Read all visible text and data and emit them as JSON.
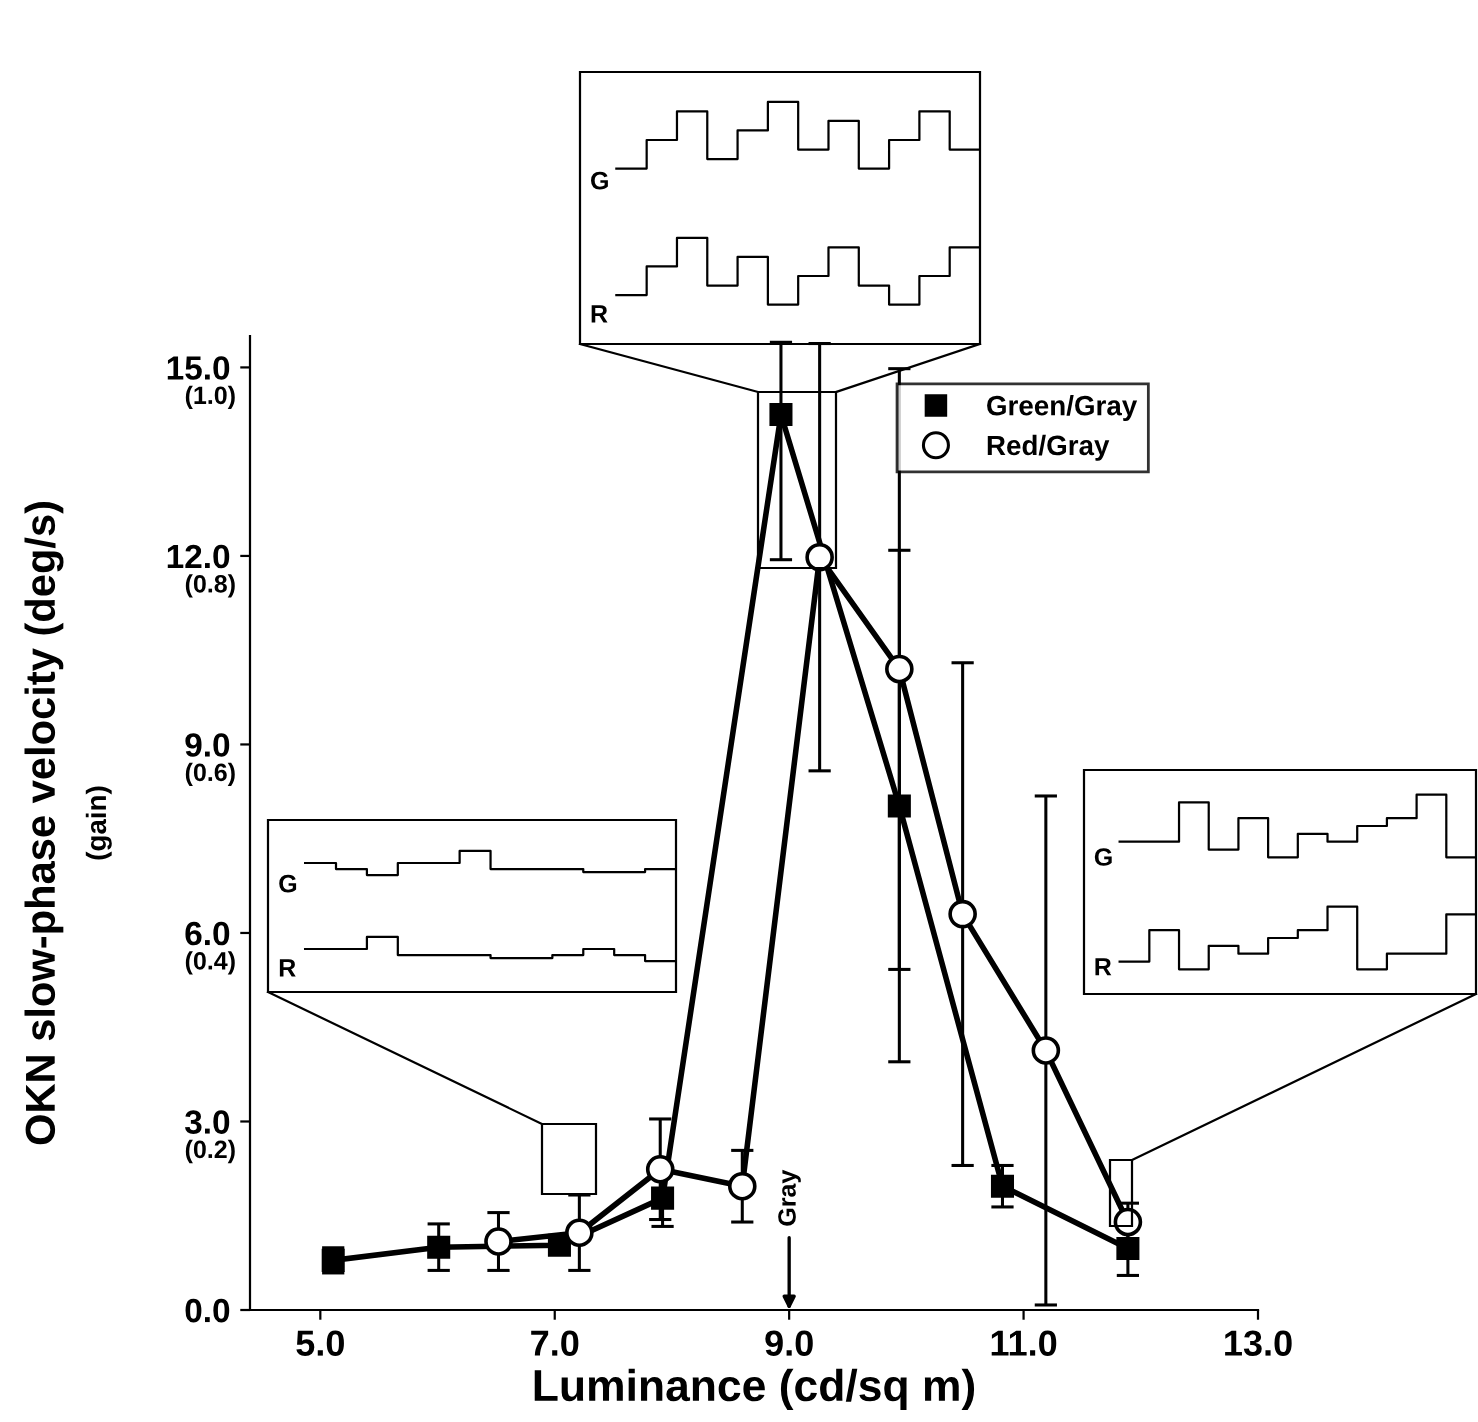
{
  "chart_data": {
    "type": "line",
    "xlabel": "Luminance (cd/sq m)",
    "ylabel": "OKN slow-phase velocity (deg/s)",
    "xlim": [
      4.4,
      13.0
    ],
    "xticks": [
      {
        "value": 5,
        "label": "5.0"
      },
      {
        "value": 7,
        "label": "7.0"
      },
      {
        "value": 9,
        "label": "9.0"
      },
      {
        "value": 11,
        "label": "11.0"
      },
      {
        "value": 13,
        "label": "13.0"
      }
    ],
    "ylim": [
      0,
      15.5
    ],
    "yticks": [
      {
        "value": 0,
        "label": "0.0"
      },
      {
        "value": 3,
        "label": "3.0"
      },
      {
        "value": 6,
        "label": "6.0"
      },
      {
        "value": 9,
        "label": "9.0"
      },
      {
        "value": 12,
        "label": "12.0"
      },
      {
        "value": 15,
        "label": "15.0"
      }
    ],
    "grid": false,
    "legend": "top right",
    "line_style": "solid",
    "series": [
      {
        "name": "Green/Gray",
        "color": "#000000",
        "marker": "square",
        "x": [
          5.11,
          6.01,
          7.04,
          7.92,
          8.93,
          9.94,
          10.82,
          11.89
        ],
        "values": [
          0.79,
          1.0,
          1.03,
          1.78,
          14.25,
          8.02,
          1.97,
          0.98
        ],
        "errors": [
          0.2,
          0.37,
          null,
          0.45,
          [
            11.94,
            15.4
          ],
          4.07,
          0.33,
          0.43
        ]
      },
      {
        "name": "Red/Gray",
        "color": "#000000",
        "marker": "circle",
        "x": [
          6.52,
          7.21,
          7.9,
          8.6,
          9.26,
          9.94,
          10.48,
          11.19,
          11.89
        ],
        "values": [
          1.09,
          1.23,
          2.24,
          1.97,
          11.98,
          10.2,
          6.3,
          4.13,
          1.4
        ],
        "errors": [
          0.46,
          0.6,
          0.8,
          0.57,
          3.4,
          4.78,
          4.0,
          4.05,
          0.3
        ]
      }
    ],
    "annotations": [
      "G",
      "R",
      "G",
      "R",
      "G",
      "R",
      "Gray",
      "(gain)",
      "(0.2)",
      "(0.4)",
      "(0.6)",
      "(0.8)",
      "(1.0)"
    ]
  }
}
